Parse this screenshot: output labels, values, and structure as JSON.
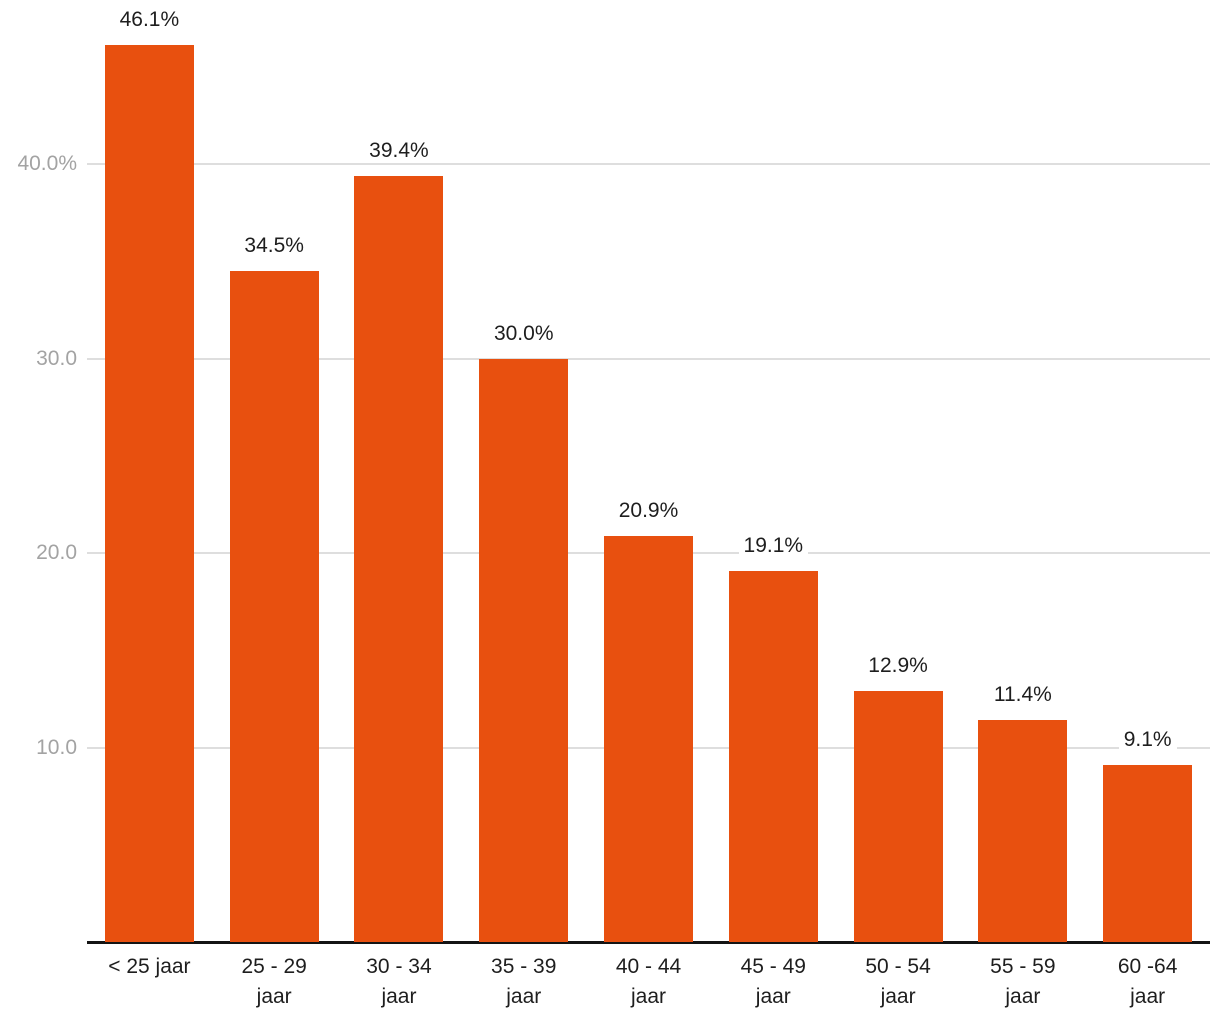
{
  "chart_data": {
    "type": "bar",
    "title": "",
    "xlabel": "",
    "ylabel": "",
    "categories": [
      "< 25 jaar",
      "25 - 29 jaar",
      "30 - 34 jaar",
      "35 - 39 jaar",
      "40 - 44 jaar",
      "45 - 49 jaar",
      "50 - 54 jaar",
      "55 - 59 jaar",
      "60 -64 jaar"
    ],
    "values": [
      46.1,
      34.5,
      39.4,
      30.0,
      20.9,
      19.1,
      12.9,
      11.4,
      9.1
    ],
    "value_labels": [
      "46.1%",
      "34.5%",
      "39.4%",
      "30.0%",
      "20.9%",
      "19.1%",
      "12.9%",
      "11.4%",
      "9.1%"
    ],
    "ylim": [
      0,
      48.5
    ],
    "grid": "horizontal-light",
    "legend_position": "none",
    "colors": {
      "bar": "#E8500F",
      "gridline": "#DEDEDE",
      "axis_line": "#141414",
      "y_tick_label": "#A3A3A3",
      "value_label": "#1E1E1E",
      "background": "#FFFFFF"
    },
    "y_ticks": [
      {
        "value": 40,
        "label": "40.0%"
      },
      {
        "value": 30,
        "label": "30.0"
      },
      {
        "value": 20,
        "label": "20.0"
      },
      {
        "value": 10,
        "label": "10.0"
      }
    ],
    "bars": [
      {
        "value": 46.1,
        "label": "46.1%",
        "cat1": "< 25 jaar",
        "cat2": ""
      },
      {
        "value": 34.5,
        "label": "34.5%",
        "cat1": "25 - 29",
        "cat2": "jaar"
      },
      {
        "value": 39.4,
        "label": "39.4%",
        "cat1": "30 - 34",
        "cat2": "jaar"
      },
      {
        "value": 30.0,
        "label": "30.0%",
        "cat1": "35 - 39",
        "cat2": "jaar"
      },
      {
        "value": 20.9,
        "label": "20.9%",
        "cat1": "40 - 44",
        "cat2": "jaar"
      },
      {
        "value": 19.1,
        "label": "19.1%",
        "cat1": "45 - 49",
        "cat2": "jaar"
      },
      {
        "value": 12.9,
        "label": "12.9%",
        "cat1": "50 - 54",
        "cat2": "jaar"
      },
      {
        "value": 11.4,
        "label": "11.4%",
        "cat1": "55 - 59",
        "cat2": "jaar"
      },
      {
        "value": 9.1,
        "label": "9.1%",
        "cat1": "60 -64",
        "cat2": "jaar"
      }
    ]
  }
}
